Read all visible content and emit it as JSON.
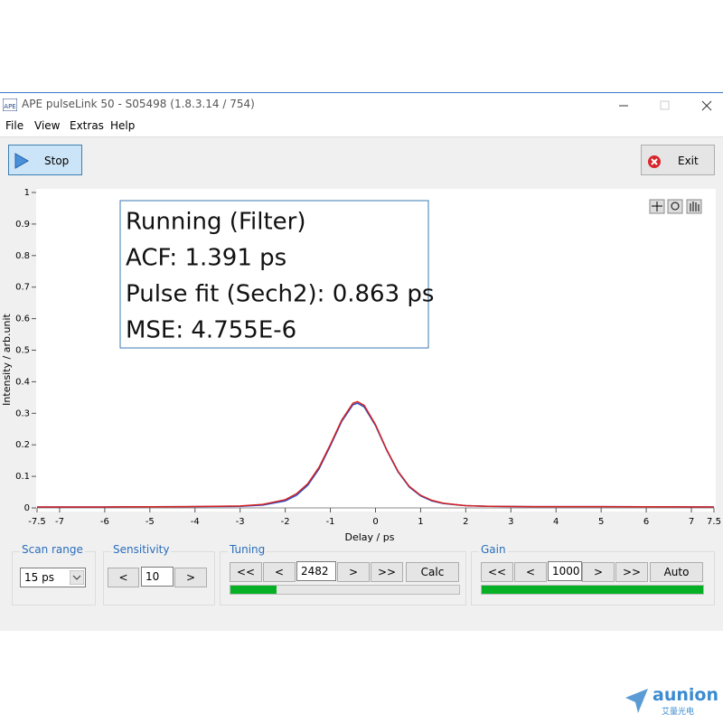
{
  "window": {
    "title": "APE pulseLink 50 - S05498 (1.8.3.14 / 754)"
  },
  "menu": [
    "File",
    "View",
    "Extras",
    "Help"
  ],
  "toolbar": {
    "stop": "Stop",
    "exit": "Exit"
  },
  "chart_data": {
    "type": "line",
    "annotation": [
      "Running (Filter)",
      "ACF: 1.391 ps",
      "Pulse fit (Sech2): 0.863 ps",
      "MSE: 4.755E-6"
    ],
    "x_label": "Delay / ps",
    "y_label": "Intensity / arb.unit",
    "x": [
      -7.5,
      -6,
      -4.2,
      -3,
      -2.5,
      -2,
      -1.75,
      -1.5,
      -1.25,
      -1,
      -0.75,
      -0.5,
      -0.4,
      -0.25,
      0,
      0.25,
      0.5,
      0.75,
      1,
      1.25,
      1.5,
      2,
      2.5,
      3.5,
      5,
      7.5
    ],
    "series": [
      {
        "color": "#2b4fc8",
        "values": [
          0.003,
          0.003,
          0.004,
          0.005,
          0.009,
          0.022,
          0.04,
          0.072,
          0.124,
          0.197,
          0.274,
          0.327,
          0.332,
          0.32,
          0.261,
          0.182,
          0.114,
          0.066,
          0.038,
          0.022,
          0.014,
          0.007,
          0.005,
          0.004,
          0.004,
          0.003
        ]
      },
      {
        "color": "#d42020",
        "values": [
          0.003,
          0.003,
          0.004,
          0.006,
          0.011,
          0.026,
          0.045,
          0.077,
          0.129,
          0.201,
          0.278,
          0.332,
          0.337,
          0.325,
          0.264,
          0.184,
          0.116,
          0.068,
          0.04,
          0.024,
          0.015,
          0.007,
          0.005,
          0.004,
          0.004,
          0.003
        ]
      }
    ],
    "xlim": [
      -7.5,
      7.5
    ],
    "xticks": [
      -7.5,
      -7,
      -6,
      -5,
      -4,
      -3,
      -2,
      -1,
      0,
      1,
      2,
      3,
      4,
      5,
      6,
      7,
      7.5
    ],
    "ylim": [
      0,
      1
    ],
    "yticks": [
      0,
      0.1,
      0.2,
      0.3,
      0.4,
      0.5,
      0.6,
      0.7,
      0.8,
      0.9,
      1
    ]
  },
  "controls": {
    "scan_range": {
      "title": "Scan range",
      "value": "15 ps"
    },
    "sensitivity": {
      "title": "Sensitivity",
      "dec": "<",
      "value": "10",
      "inc": ">"
    },
    "tuning": {
      "title": "Tuning",
      "fast_dec": "<<",
      "dec": "<",
      "value": "2482",
      "inc": ">",
      "fast_inc": ">>",
      "action": "Calc",
      "progress": 20
    },
    "gain": {
      "title": "Gain",
      "fast_dec": "<<",
      "dec": "<",
      "value": "1000",
      "inc": ">",
      "fast_inc": ">>",
      "action": "Auto",
      "progress": 100
    }
  },
  "watermark": {
    "brand": "aunion",
    "sub": "艾量光电"
  }
}
